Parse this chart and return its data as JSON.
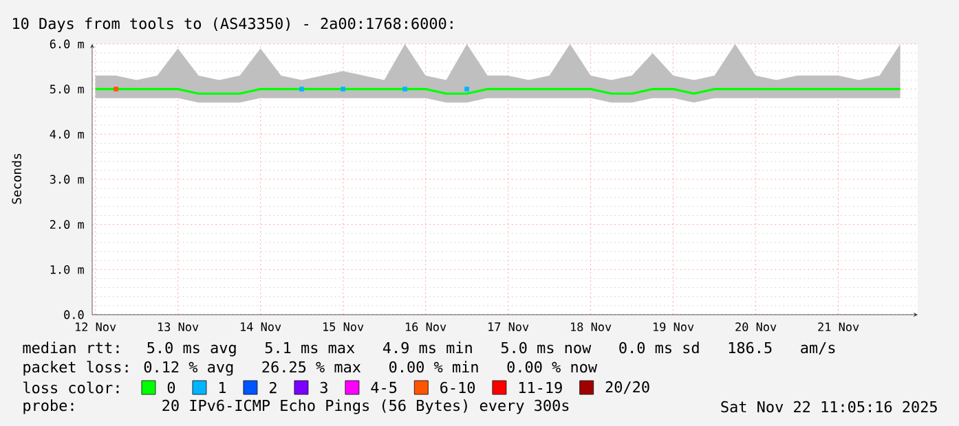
{
  "chart_data": {
    "type": "line",
    "title": "10 Days from tools to (AS43350) - 2a00:1768:6000:",
    "ylabel": "Seconds",
    "xlim": [
      "2025-11-12T11:05",
      "2025-11-22T11:05"
    ],
    "xticks": [
      {
        "value": "2025-11-12T12:00",
        "label": "12 Nov"
      },
      {
        "value": "2025-11-13T12:00",
        "label": "13 Nov"
      },
      {
        "value": "2025-11-14T12:00",
        "label": "14 Nov"
      },
      {
        "value": "2025-11-15T12:00",
        "label": "15 Nov"
      },
      {
        "value": "2025-11-16T12:00",
        "label": "16 Nov"
      },
      {
        "value": "2025-11-17T12:00",
        "label": "17 Nov"
      },
      {
        "value": "2025-11-18T12:00",
        "label": "18 Nov"
      },
      {
        "value": "2025-11-19T12:00",
        "label": "19 Nov"
      },
      {
        "value": "2025-11-20T12:00",
        "label": "20 Nov"
      },
      {
        "value": "2025-11-21T12:00",
        "label": "21 Nov"
      }
    ],
    "ylim": [
      0,
      6
    ],
    "yticks": [
      {
        "value": 0,
        "label": "0.0"
      },
      {
        "value": 1,
        "label": "1.0 m"
      },
      {
        "value": 2,
        "label": "2.0 m"
      },
      {
        "value": 3,
        "label": "3.0 m"
      },
      {
        "value": 4,
        "label": "4.0 m"
      },
      {
        "value": 5,
        "label": "5.0 m"
      },
      {
        "value": 6,
        "label": "6.0 m"
      }
    ],
    "grid": true,
    "legend": "bottom",
    "legend_title": "loss color:",
    "x": [
      "2025-11-12T12:00",
      "2025-11-12T18:00",
      "2025-11-13T00:00",
      "2025-11-13T06:00",
      "2025-11-13T12:00",
      "2025-11-13T18:00",
      "2025-11-14T00:00",
      "2025-11-14T06:00",
      "2025-11-14T12:00",
      "2025-11-14T18:00",
      "2025-11-15T00:00",
      "2025-11-15T06:00",
      "2025-11-15T12:00",
      "2025-11-15T18:00",
      "2025-11-16T00:00",
      "2025-11-16T06:00",
      "2025-11-16T12:00",
      "2025-11-16T18:00",
      "2025-11-17T00:00",
      "2025-11-17T06:00",
      "2025-11-17T12:00",
      "2025-11-17T18:00",
      "2025-11-18T00:00",
      "2025-11-18T06:00",
      "2025-11-18T12:00",
      "2025-11-18T18:00",
      "2025-11-19T00:00",
      "2025-11-19T06:00",
      "2025-11-19T12:00",
      "2025-11-19T18:00",
      "2025-11-20T00:00",
      "2025-11-20T06:00",
      "2025-11-20T12:00",
      "2025-11-20T18:00",
      "2025-11-21T00:00",
      "2025-11-21T06:00",
      "2025-11-21T12:00",
      "2025-11-21T18:00",
      "2025-11-22T00:00",
      "2025-11-22T06:00"
    ],
    "series": [
      {
        "name": "0",
        "type": "line",
        "color": "#00ff00",
        "values": [
          5.0,
          5.0,
          5.0,
          5.0,
          5.0,
          4.9,
          4.9,
          4.9,
          5.0,
          5.0,
          5.0,
          5.0,
          5.0,
          5.0,
          5.0,
          5.0,
          5.0,
          4.9,
          4.9,
          5.0,
          5.0,
          5.0,
          5.0,
          5.0,
          5.0,
          4.9,
          4.9,
          5.0,
          5.0,
          4.9,
          5.0,
          5.0,
          5.0,
          5.0,
          5.0,
          5.0,
          5.0,
          5.0,
          5.0,
          5.0
        ],
        "lower": [
          4.8,
          4.8,
          4.8,
          4.8,
          4.8,
          4.7,
          4.7,
          4.7,
          4.8,
          4.8,
          4.8,
          4.8,
          4.8,
          4.8,
          4.8,
          4.8,
          4.8,
          4.7,
          4.7,
          4.8,
          4.8,
          4.8,
          4.8,
          4.8,
          4.8,
          4.7,
          4.7,
          4.8,
          4.8,
          4.7,
          4.8,
          4.8,
          4.8,
          4.8,
          4.8,
          4.8,
          4.8,
          4.8,
          4.8,
          4.8
        ],
        "upper": [
          5.3,
          5.3,
          5.2,
          5.3,
          5.9,
          5.3,
          5.2,
          5.3,
          5.9,
          5.3,
          5.2,
          5.3,
          5.4,
          5.3,
          5.2,
          6.0,
          5.3,
          5.2,
          6.0,
          5.3,
          5.3,
          5.2,
          5.3,
          6.0,
          5.3,
          5.2,
          5.3,
          5.8,
          5.3,
          5.2,
          5.3,
          6.0,
          5.3,
          5.2,
          5.3,
          5.3,
          5.3,
          5.2,
          5.3,
          6.0
        ]
      },
      {
        "name": "1",
        "type": "scatter",
        "marker": "square",
        "color": "#00b4ff",
        "values": [
          null,
          null,
          null,
          null,
          null,
          null,
          null,
          null,
          null,
          null,
          5.0,
          null,
          5.0,
          null,
          null,
          5.0,
          null,
          null,
          5.0,
          null,
          null,
          null,
          null,
          null,
          null,
          null,
          null,
          null,
          null,
          null,
          null,
          null,
          null,
          null,
          null,
          null,
          null,
          null,
          null,
          null
        ]
      },
      {
        "name": "2",
        "type": "scatter",
        "marker": "square",
        "color": "#0055ff",
        "values": [
          null,
          null,
          null,
          null,
          null,
          null,
          null,
          null,
          null,
          null,
          null,
          null,
          null,
          null,
          null,
          null,
          null,
          null,
          null,
          null,
          null,
          null,
          null,
          null,
          null,
          null,
          null,
          null,
          null,
          null,
          null,
          null,
          null,
          null,
          null,
          null,
          null,
          null,
          null,
          null
        ]
      },
      {
        "name": "3",
        "type": "scatter",
        "marker": "square",
        "color": "#7a00ff",
        "values": [
          null,
          null,
          null,
          null,
          null,
          null,
          null,
          null,
          null,
          null,
          null,
          null,
          null,
          null,
          null,
          null,
          null,
          null,
          null,
          null,
          null,
          null,
          null,
          null,
          null,
          null,
          null,
          null,
          null,
          null,
          null,
          null,
          null,
          null,
          null,
          null,
          null,
          null,
          null,
          null
        ]
      },
      {
        "name": "4-5",
        "type": "scatter",
        "marker": "square",
        "color": "#ff00ff",
        "values": [
          null,
          null,
          null,
          null,
          null,
          null,
          null,
          null,
          null,
          null,
          null,
          null,
          null,
          null,
          null,
          null,
          null,
          null,
          null,
          null,
          null,
          null,
          null,
          null,
          null,
          null,
          null,
          null,
          null,
          null,
          null,
          null,
          null,
          null,
          null,
          null,
          null,
          null,
          null,
          null
        ]
      },
      {
        "name": "6-10",
        "type": "scatter",
        "marker": "square",
        "color": "#ff5500",
        "values": [
          null,
          5.0,
          null,
          null,
          null,
          null,
          null,
          null,
          null,
          null,
          null,
          null,
          null,
          null,
          null,
          null,
          null,
          null,
          null,
          null,
          null,
          null,
          null,
          null,
          null,
          null,
          null,
          null,
          null,
          null,
          null,
          null,
          null,
          null,
          null,
          null,
          null,
          null,
          null,
          null
        ]
      },
      {
        "name": "11-19",
        "type": "scatter",
        "marker": "square",
        "color": "#ff0000",
        "values": [
          null,
          null,
          null,
          null,
          null,
          null,
          null,
          null,
          null,
          null,
          null,
          null,
          null,
          null,
          null,
          null,
          null,
          null,
          null,
          null,
          null,
          null,
          null,
          null,
          null,
          null,
          null,
          null,
          null,
          null,
          null,
          null,
          null,
          null,
          null,
          null,
          null,
          null,
          null,
          null
        ]
      },
      {
        "name": "20/20",
        "type": "scatter",
        "marker": "square",
        "color": "#a10000",
        "values": [
          null,
          null,
          null,
          null,
          null,
          null,
          null,
          null,
          null,
          null,
          null,
          null,
          null,
          null,
          null,
          null,
          null,
          null,
          null,
          null,
          null,
          null,
          null,
          null,
          null,
          null,
          null,
          null,
          null,
          null,
          null,
          null,
          null,
          null,
          null,
          null,
          null,
          null,
          null,
          null
        ]
      }
    ],
    "annotations": [
      "median rtt:  5.0 ms avg   5.1 ms max   4.9 ms min   5.0 ms now   0.0 ms sd   186.5   am/s",
      "packet loss: 0.12 % avg   26.25 % max   0.00 % min   0.00 % now",
      "probe:       20 IPv6-ICMP Echo Pings (56 Bytes) every 300s",
      "Sat Nov 22 11:05:16 2025"
    ]
  }
}
